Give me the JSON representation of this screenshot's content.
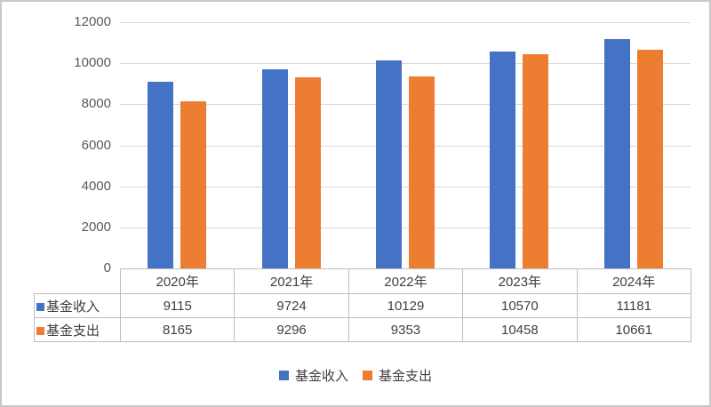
{
  "chart_data": {
    "type": "bar",
    "title": "",
    "xlabel": "",
    "ylabel": "",
    "categories": [
      "2020年",
      "2021年",
      "2022年",
      "2023年",
      "2024年"
    ],
    "series": [
      {
        "name": "基金收入",
        "color": "#4472C4",
        "values": [
          9115,
          9724,
          10129,
          10570,
          11181
        ]
      },
      {
        "name": "基金支出",
        "color": "#ED7D31",
        "values": [
          8165,
          9296,
          9353,
          10458,
          10661
        ]
      }
    ],
    "ylim": [
      0,
      12000
    ],
    "yticks": [
      0,
      2000,
      4000,
      6000,
      8000,
      10000,
      12000
    ],
    "grid": true,
    "legend_position": "bottom",
    "data_table_shown": true
  },
  "colors": {
    "series_income": "#4472C4",
    "series_expense": "#ED7D31",
    "gridline": "#D9D9D9",
    "table_border": "#BFBFBF",
    "axis_text": "#595959",
    "table_text": "#404040",
    "frame_border": "#C9C9C9",
    "background": "#FFFFFF"
  }
}
